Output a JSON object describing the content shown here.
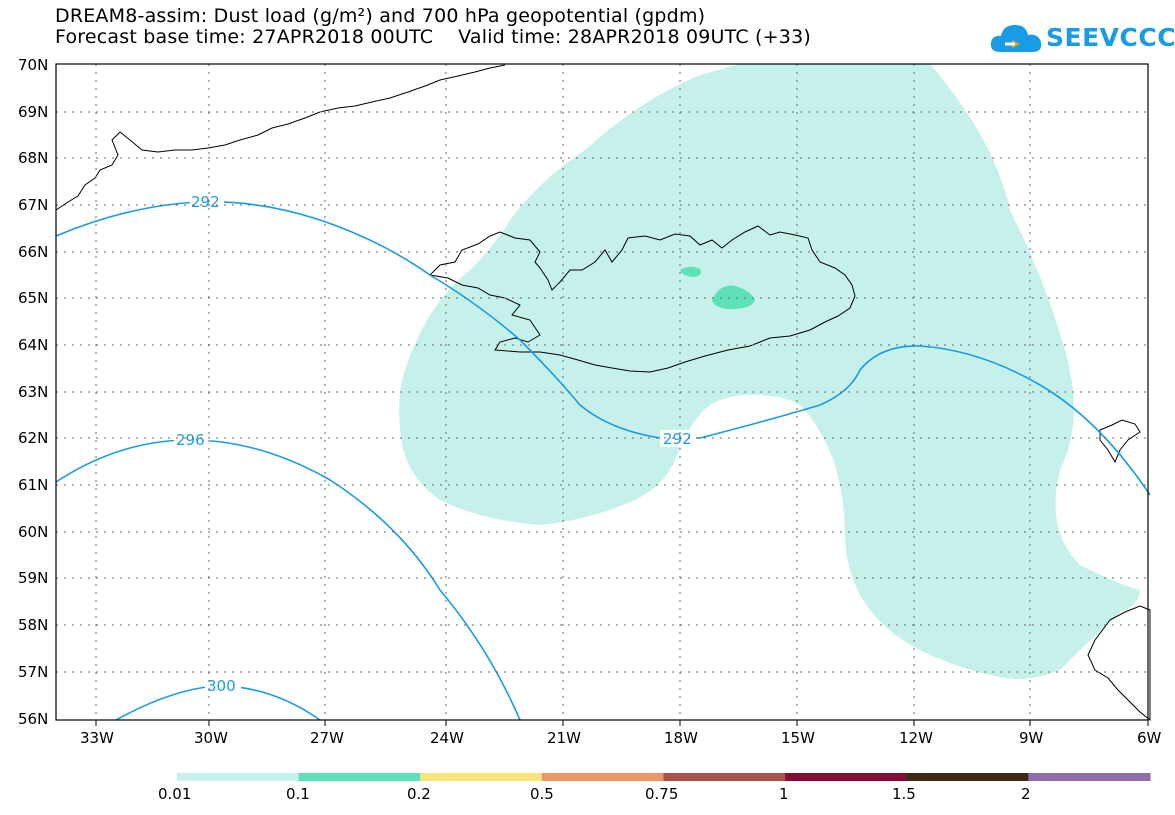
{
  "title": {
    "line1": "DREAM8-assim: Dust load (g/m²) and 700 hPa geopotential (gpdm)",
    "line2": "Forecast base time: 27APR2018 00UTC    Valid time: 28APR2018 09UTC (+33)"
  },
  "logo": {
    "text": "SEEVCCC"
  },
  "map": {
    "lat_labels": [
      "70N",
      "69N",
      "68N",
      "67N",
      "66N",
      "65N",
      "64N",
      "63N",
      "62N",
      "61N",
      "60N",
      "59N",
      "58N",
      "57N",
      "56N"
    ],
    "lon_labels": [
      "33W",
      "30W",
      "27W",
      "24W",
      "21W",
      "18W",
      "15W",
      "12W",
      "9W",
      "6W"
    ],
    "contour_labels": [
      "292",
      "292",
      "296",
      "300"
    ]
  },
  "colorbar": {
    "labels": [
      "0.01",
      "0.1",
      "0.2",
      "0.5",
      "0.75",
      "1",
      "1.5",
      "2"
    ],
    "colors": [
      "#c6f1ea",
      "#5ee0b8",
      "#f5e57a",
      "#ef9668",
      "#a8524a",
      "#800e36",
      "#3c2a17",
      "#8e6eaa"
    ]
  }
}
